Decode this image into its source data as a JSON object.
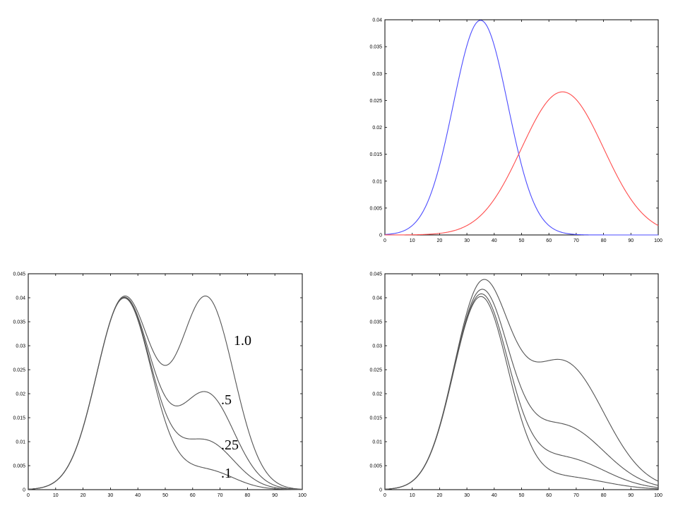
{
  "chart_data": [
    {
      "type": "line",
      "x_range": [
        0,
        100
      ],
      "ylim": [
        0,
        0.04
      ],
      "xticks": [
        "0",
        "10",
        "20",
        "30",
        "40",
        "50",
        "60",
        "70",
        "80",
        "90",
        "100"
      ],
      "yticks": [
        "0",
        "0.005",
        "0.01",
        "0.015",
        "0.02",
        "0.025",
        "0.03",
        "0.035",
        "0.04"
      ],
      "grid": false,
      "series": [
        {
          "color": "#4d4dff",
          "kind": "gaussian",
          "mean": 35,
          "sd": 10,
          "scale": 1.0
        },
        {
          "color": "#ff4d4d",
          "kind": "gaussian",
          "mean": 65,
          "sd": 15,
          "scale": 1.0
        }
      ]
    },
    {
      "type": "line",
      "x_range": [
        0,
        100
      ],
      "ylim": [
        0,
        0.045
      ],
      "xticks": [
        "0",
        "10",
        "20",
        "30",
        "40",
        "50",
        "60",
        "70",
        "80",
        "90",
        "100"
      ],
      "yticks": [
        "0",
        "0.005",
        "0.01",
        "0.015",
        "0.02",
        "0.025",
        "0.03",
        "0.035",
        "0.04",
        "0.045"
      ],
      "grid": false,
      "series": [
        {
          "label": "1.0",
          "color": "#555555",
          "kind": "mixture",
          "w1": 1.0,
          "m1": 35,
          "s1": 10,
          "w2": 1.0,
          "m2": 65,
          "s2": 10
        },
        {
          "label": ".5",
          "color": "#555555",
          "kind": "mixture",
          "w1": 1.0,
          "m1": 35,
          "s1": 10,
          "w2": 0.5,
          "m2": 65,
          "s2": 10
        },
        {
          "label": ".25",
          "color": "#555555",
          "kind": "mixture",
          "w1": 1.0,
          "m1": 35,
          "s1": 10,
          "w2": 0.25,
          "m2": 65,
          "s2": 10
        },
        {
          "label": ".1",
          "color": "#555555",
          "kind": "mixture",
          "w1": 1.0,
          "m1": 35,
          "s1": 10,
          "w2": 0.1,
          "m2": 65,
          "s2": 10
        }
      ]
    },
    {
      "type": "line",
      "x_range": [
        0,
        100
      ],
      "ylim": [
        0,
        0.045
      ],
      "xticks": [
        "0",
        "10",
        "20",
        "30",
        "40",
        "50",
        "60",
        "70",
        "80",
        "90",
        "100"
      ],
      "yticks": [
        "0",
        "0.005",
        "0.01",
        "0.015",
        "0.02",
        "0.025",
        "0.03",
        "0.035",
        "0.04",
        "0.045"
      ],
      "grid": false,
      "series": [
        {
          "color": "#555555",
          "kind": "mixture",
          "w1": 1.0,
          "m1": 35,
          "s1": 10,
          "w2": 1.0,
          "m2": 65,
          "s2": 15
        },
        {
          "color": "#555555",
          "kind": "mixture",
          "w1": 1.0,
          "m1": 35,
          "s1": 10,
          "w2": 0.5,
          "m2": 65,
          "s2": 15
        },
        {
          "color": "#555555",
          "kind": "mixture",
          "w1": 1.0,
          "m1": 35,
          "s1": 10,
          "w2": 0.25,
          "m2": 65,
          "s2": 15
        },
        {
          "color": "#555555",
          "kind": "mixture",
          "w1": 1.0,
          "m1": 35,
          "s1": 10,
          "w2": 0.1,
          "m2": 65,
          "s2": 15
        }
      ]
    }
  ]
}
